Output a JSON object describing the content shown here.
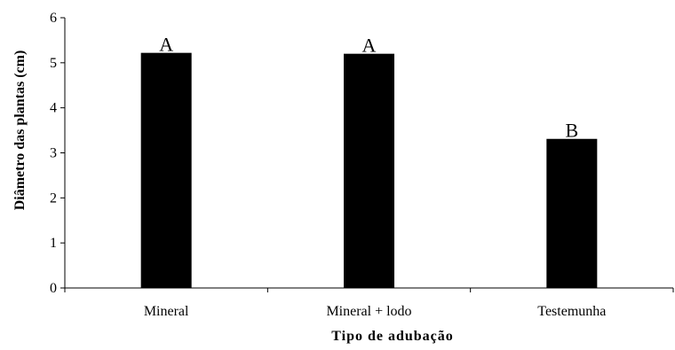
{
  "chart_data": {
    "type": "bar",
    "title": "",
    "xlabel": "Tipo de adubação",
    "ylabel": "Diâmetro das plantas (cm)",
    "ylim": [
      0,
      6
    ],
    "yticks": [
      0,
      1,
      2,
      3,
      4,
      5,
      6
    ],
    "categories": [
      "Mineral",
      "Mineral + lodo",
      "Testemunha"
    ],
    "values": [
      5.22,
      5.2,
      3.31
    ],
    "annotations": [
      "A",
      "A",
      "B"
    ],
    "grid": false,
    "legend": "none",
    "bar_color": "#000000"
  }
}
